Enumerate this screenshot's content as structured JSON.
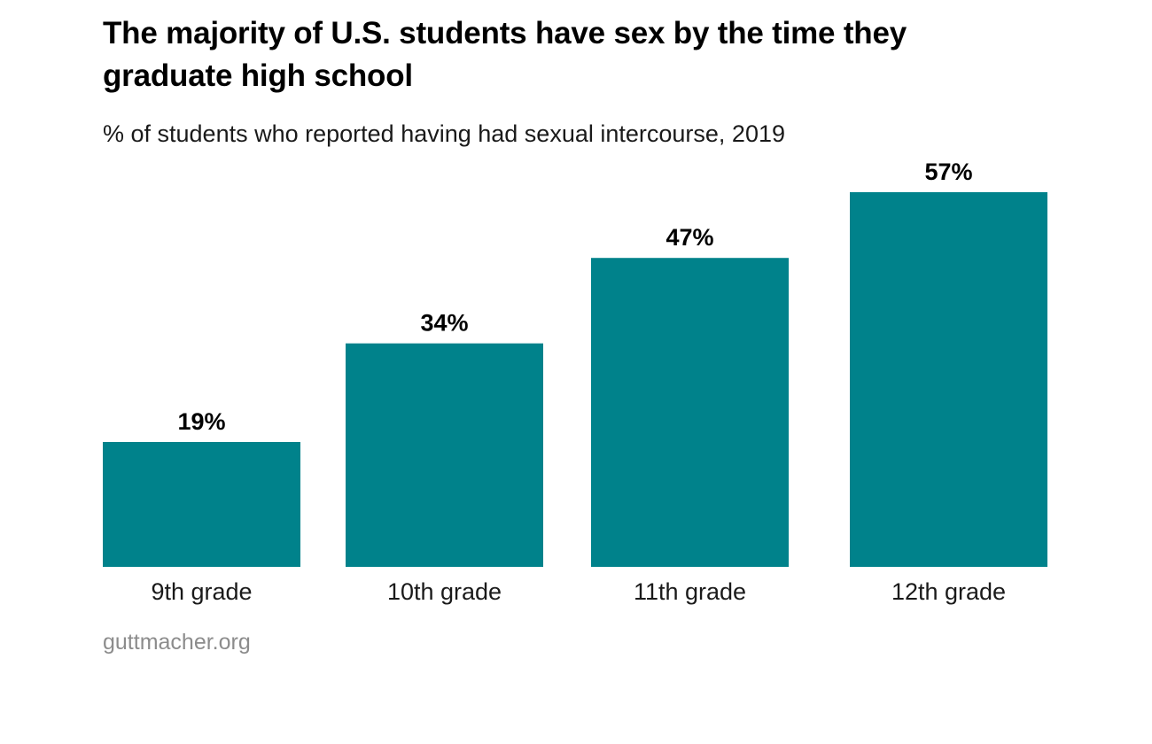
{
  "chart_data": {
    "type": "bar",
    "title": "The majority of U.S. students have sex by the time they graduate high school",
    "subtitle": "% of students who reported having had sexual intercourse, 2019",
    "categories": [
      "9th grade",
      "10th grade",
      "11th grade",
      "12th grade"
    ],
    "values": [
      19,
      34,
      47,
      57
    ],
    "value_labels": [
      "19%",
      "34%",
      "47%",
      "57%"
    ],
    "xlabel": "",
    "ylabel": "",
    "ylim": [
      0,
      57
    ],
    "grid": false,
    "legend": "none",
    "colors": {
      "bar": "#00828b"
    }
  },
  "source": {
    "text": "guttmacher.org"
  }
}
